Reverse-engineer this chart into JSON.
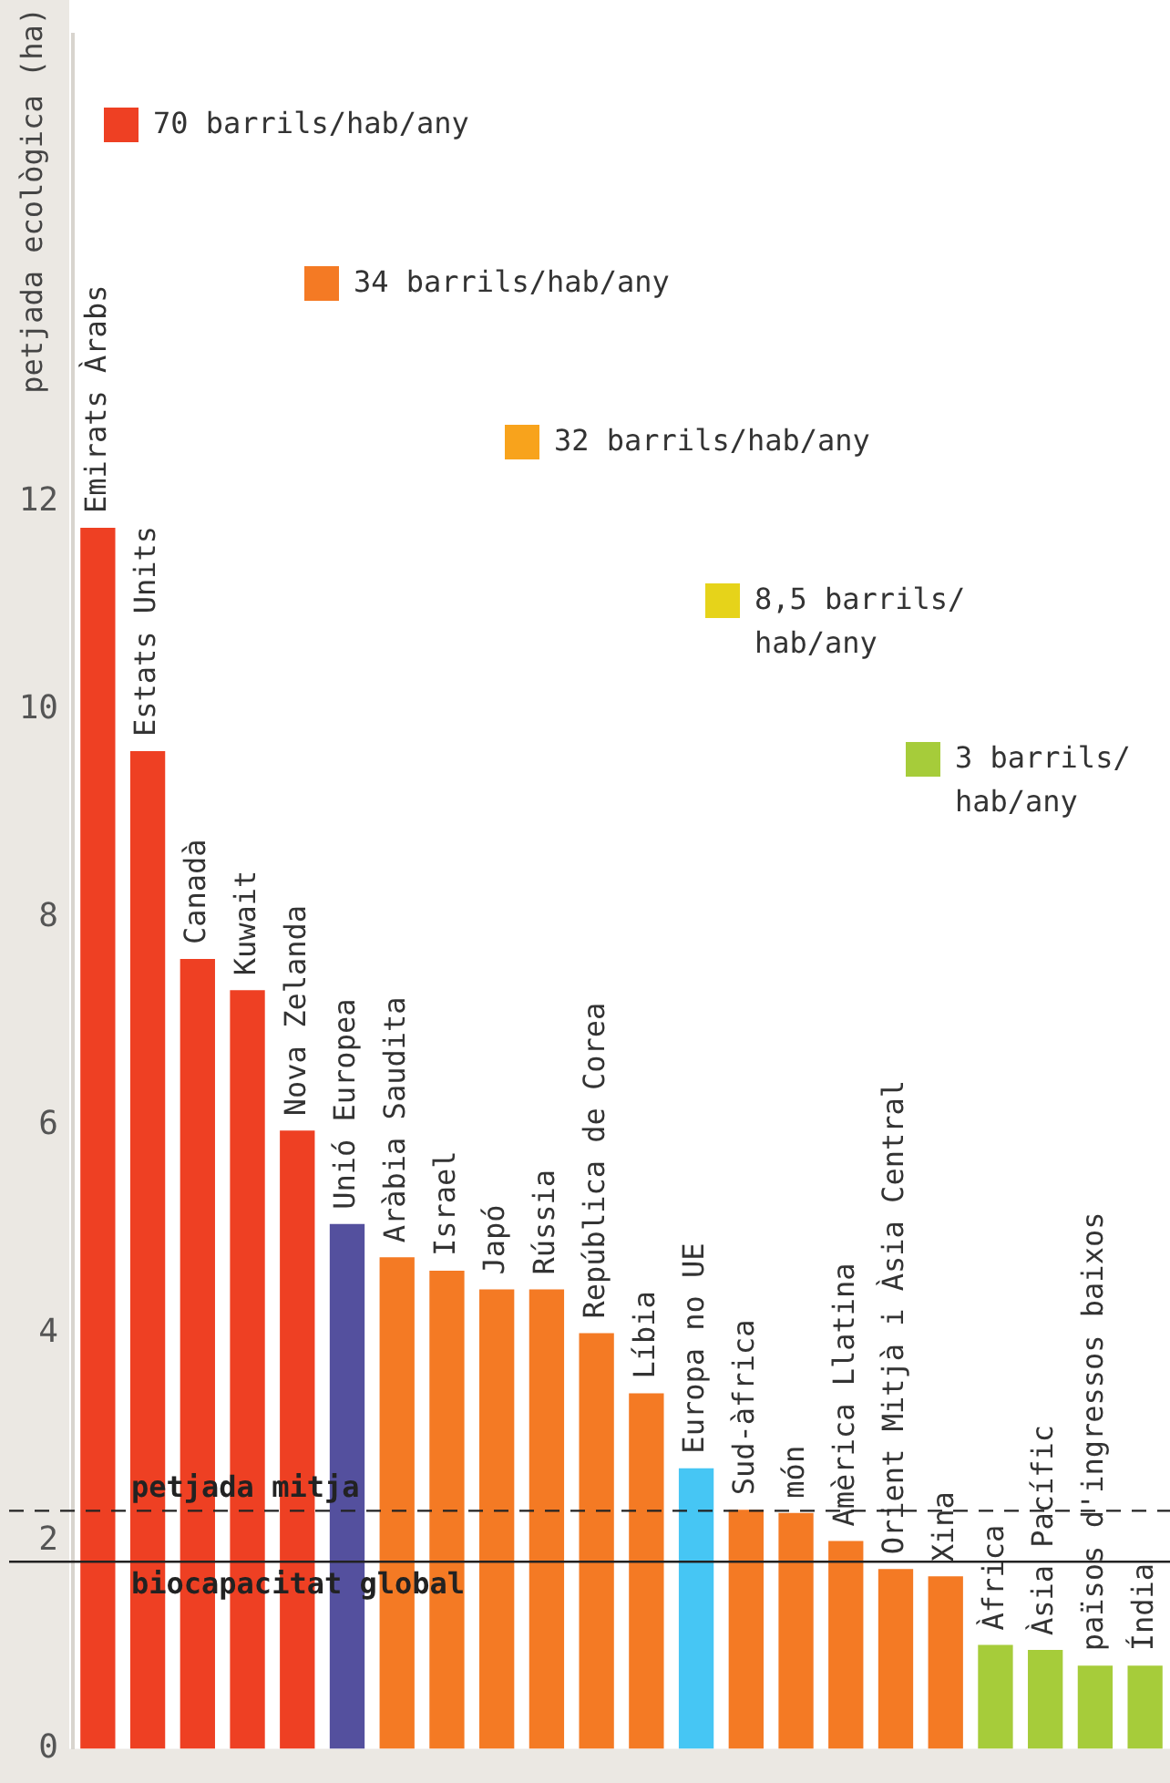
{
  "chart_data": {
    "type": "bar",
    "ylabel": "petjada ecològica (ha)",
    "categories": [
      "Emirats Àrabs",
      "Estats Units",
      "Canadà",
      "Kuwait",
      "Nova Zelanda",
      "Unió Europea",
      "Aràbia Saudita",
      "Israel",
      "Japó",
      "Rússia",
      "República de Corea",
      "Líbia",
      "Europa no UE",
      "Sud-àfrica",
      "món",
      "Amèrica Llatina",
      "Orient Mitjà i Àsia Central",
      "Xina",
      "Àfrica",
      "Àsia Pacífic",
      "països d'ingressos baixos",
      "Índia"
    ],
    "series": [
      {
        "name": "70 barrils/hab/any",
        "color": "#ee4023",
        "values": [
          11.75,
          9.6,
          7.6,
          7.3,
          5.95,
          null,
          null,
          null,
          null,
          null,
          null,
          null,
          null,
          null,
          null,
          null,
          null,
          null,
          null,
          null,
          null,
          null
        ]
      },
      {
        "name": "34 barrils/hab/any",
        "color": "#f47a24",
        "values": [
          null,
          null,
          null,
          null,
          null,
          null,
          4.73,
          4.6,
          4.42,
          4.42,
          4.0,
          3.42,
          null,
          2.3,
          2.27,
          2.0,
          1.73,
          1.66,
          null,
          null,
          null,
          null
        ]
      },
      {
        "name": "32 barrils/hab/any",
        "color": "#f8a31c",
        "values": [
          null,
          null,
          null,
          null,
          null,
          null,
          null,
          null,
          null,
          null,
          null,
          null,
          null,
          null,
          null,
          null,
          null,
          null,
          null,
          null,
          null,
          null
        ]
      },
      {
        "name": "8,5 barrils/hab/any",
        "color": "#e6d31a",
        "values": [
          null,
          null,
          null,
          null,
          null,
          null,
          null,
          null,
          null,
          null,
          null,
          null,
          null,
          null,
          null,
          null,
          null,
          null,
          null,
          null,
          null,
          null
        ]
      },
      {
        "name": "3 barrils/hab/any",
        "color": "#a6cc3a",
        "values": [
          null,
          null,
          null,
          null,
          null,
          null,
          null,
          null,
          null,
          null,
          null,
          null,
          null,
          null,
          null,
          null,
          null,
          null,
          1.0,
          0.95,
          0.8,
          0.8
        ]
      },
      {
        "color": "#54509e",
        "values": [
          null,
          null,
          null,
          null,
          null,
          5.05,
          null,
          null,
          null,
          null,
          null,
          null,
          null,
          null,
          null,
          null,
          null,
          null,
          null,
          null,
          null,
          null
        ]
      },
      {
        "color": "#46c6f4",
        "values": [
          null,
          null,
          null,
          null,
          null,
          null,
          null,
          null,
          null,
          null,
          null,
          null,
          2.7,
          null,
          null,
          null,
          null,
          null,
          null,
          null,
          null,
          null
        ]
      }
    ],
    "ylim": [
      0,
      16.5
    ],
    "yticks": [
      0,
      2,
      4,
      6,
      8,
      10,
      12
    ],
    "grid": false,
    "legend": "top",
    "ref_lines": [
      {
        "axis": "y",
        "value": 2.29,
        "label": "petjada mitja",
        "line_style": "dashed",
        "color": "#222222"
      },
      {
        "axis": "y",
        "value": 1.8,
        "label": "biocapacitat global",
        "line_style": "solid",
        "color": "#222222"
      }
    ]
  }
}
